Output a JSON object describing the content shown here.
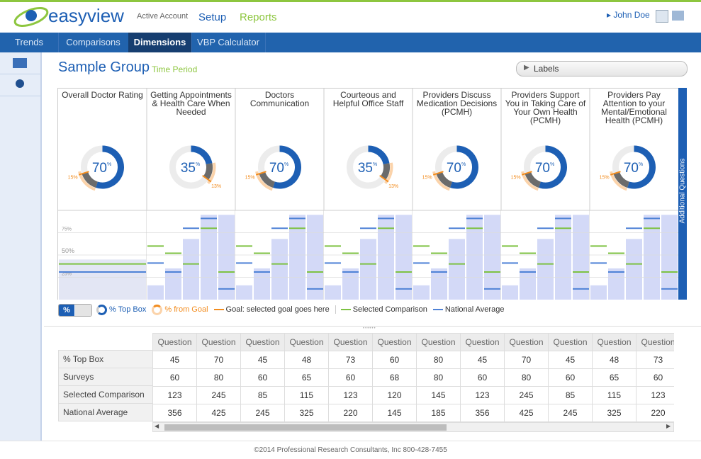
{
  "header": {
    "logo": "easyview",
    "account": "Active Account",
    "nav": [
      "Setup",
      "Reports"
    ],
    "user": "John Doe"
  },
  "tabs": [
    "Trends",
    "Comparisons",
    "Dimensions",
    "VBP Calculator"
  ],
  "active_tab": 2,
  "title": "Sample Group",
  "subtitle": "Time Period",
  "labels_button": "Labels",
  "side_tab": "Additional Questions",
  "chart_data": {
    "type": "donut",
    "unit": "%",
    "ylim": [
      0,
      100
    ],
    "yticks": [
      {
        "value": 25,
        "label": "25%"
      },
      {
        "value": 50,
        "label": "50%"
      },
      {
        "value": 75,
        "label": "75%"
      }
    ],
    "colors": {
      "score": "#1d5fb4",
      "gap": "#6b6b6b",
      "goal": "#f28c1e",
      "comparison": "#7dc242",
      "national": "#4f82d6",
      "bar": "#d3d9f7"
    },
    "dimensions": [
      {
        "name": "Overall Doctor Rating",
        "score": 70,
        "goal": 15,
        "goal_label": "15%",
        "bars": [
          45
        ],
        "comparison": [
          40
        ],
        "national": [
          31
        ]
      },
      {
        "name": "Getting Appointments & Health Care When Needed",
        "score": 35,
        "goal": 13,
        "goal_label": "13%",
        "bars": [
          16,
          35,
          68,
          95,
          95
        ],
        "comparison": [
          60,
          52,
          40,
          80,
          31
        ],
        "national": [
          41,
          31,
          80,
          91,
          12
        ]
      },
      {
        "name": "Doctors Communication",
        "score": 70,
        "goal": 15,
        "goal_label": "15%",
        "bars": [
          16,
          35,
          68,
          95,
          95
        ],
        "comparison": [
          60,
          52,
          40,
          80,
          31
        ],
        "national": [
          41,
          31,
          80,
          91,
          12
        ]
      },
      {
        "name": "Courteous and Helpful Office Staff",
        "score": 35,
        "goal": 13,
        "goal_label": "13%",
        "bars": [
          16,
          35,
          68,
          95,
          95
        ],
        "comparison": [
          60,
          52,
          40,
          80,
          31
        ],
        "national": [
          41,
          31,
          80,
          91,
          12
        ]
      },
      {
        "name": "Providers Discuss Medication Decisions (PCMH)",
        "score": 70,
        "goal": 15,
        "goal_label": "15%",
        "bars": [
          16,
          35,
          68,
          95,
          95
        ],
        "comparison": [
          60,
          52,
          40,
          80,
          31
        ],
        "national": [
          41,
          31,
          80,
          91,
          12
        ]
      },
      {
        "name": "Providers Support You in Taking Care of Your Own Health (PCMH)",
        "score": 70,
        "goal": 15,
        "goal_label": "15%",
        "bars": [
          16,
          35,
          68,
          95,
          95
        ],
        "comparison": [
          60,
          52,
          40,
          80,
          31
        ],
        "national": [
          41,
          31,
          80,
          91,
          12
        ]
      },
      {
        "name": "Providers Pay Attention to your Mental/Emotional Health (PCMH)",
        "score": 70,
        "goal": 15,
        "goal_label": "15%",
        "bars": [
          16,
          35,
          68,
          95,
          95
        ],
        "comparison": [
          60,
          52,
          40,
          80,
          31
        ],
        "national": [
          41,
          31,
          80,
          91,
          12
        ]
      }
    ]
  },
  "legend": {
    "toggle": "%",
    "items": [
      "% Top Box",
      "% from Goal",
      "Goal: selected goal goes here",
      "Selected Comparison",
      "National Average"
    ]
  },
  "table": {
    "columns": [
      "Question",
      "Question",
      "Question",
      "Question",
      "Question",
      "Question",
      "Question",
      "Question",
      "Question",
      "Question",
      "Question",
      "Question"
    ],
    "rows": [
      {
        "label": "% Top Box",
        "values": [
          45,
          70,
          45,
          48,
          73,
          60,
          80,
          45,
          70,
          45,
          48,
          73
        ]
      },
      {
        "label": "Surveys",
        "values": [
          60,
          80,
          60,
          65,
          60,
          68,
          80,
          60,
          80,
          60,
          65,
          60
        ]
      },
      {
        "label": "Selected Comparison",
        "values": [
          123,
          245,
          85,
          115,
          123,
          120,
          145,
          123,
          245,
          85,
          115,
          123
        ]
      },
      {
        "label": "National Average",
        "values": [
          356,
          425,
          245,
          325,
          220,
          145,
          185,
          356,
          425,
          245,
          325,
          220
        ]
      }
    ]
  },
  "footer": "©2014 Professional Research Consultants, Inc 800-428-7455"
}
